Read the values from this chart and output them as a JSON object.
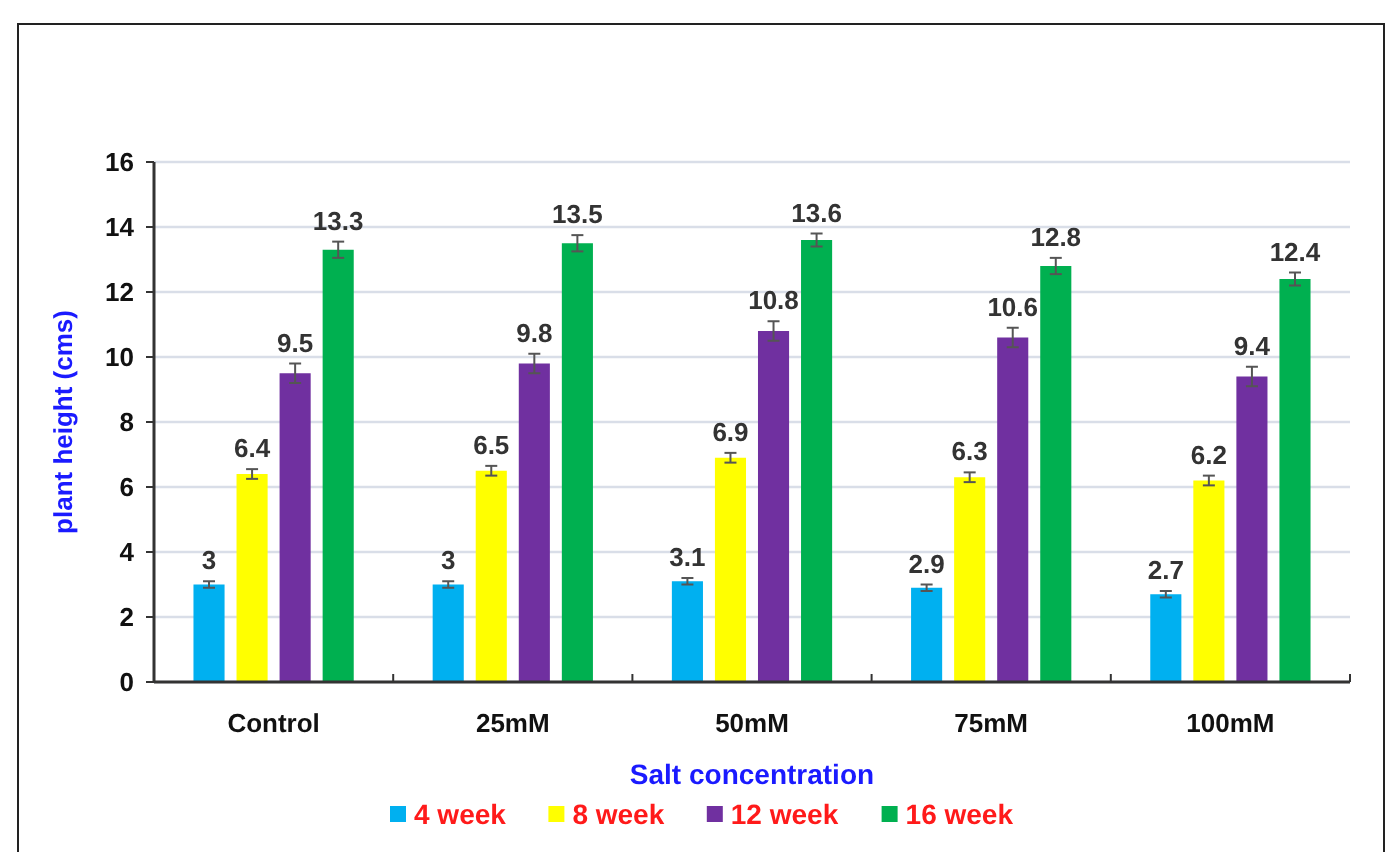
{
  "chart_data": {
    "type": "bar",
    "xlabel": "Salt concentration",
    "ylabel": "plant height (cms)",
    "categories": [
      "Control",
      "25mM",
      "50mM",
      "75mM",
      "100mM"
    ],
    "series": [
      {
        "name": "4 week",
        "color": "#00b0f0",
        "values": [
          3,
          3,
          3.1,
          2.9,
          2.7
        ],
        "errors": [
          0.1,
          0.1,
          0.1,
          0.1,
          0.1
        ]
      },
      {
        "name": "8 week",
        "color": "#ffff00",
        "values": [
          6.4,
          6.5,
          6.9,
          6.3,
          6.2
        ],
        "errors": [
          0.15,
          0.15,
          0.15,
          0.15,
          0.15
        ]
      },
      {
        "name": "12 week",
        "color": "#7030a0",
        "values": [
          9.5,
          9.8,
          10.8,
          10.6,
          9.4
        ],
        "errors": [
          0.3,
          0.3,
          0.3,
          0.3,
          0.3
        ]
      },
      {
        "name": "16 week",
        "color": "#00b050",
        "values": [
          13.3,
          13.5,
          13.6,
          12.8,
          12.4
        ],
        "errors": [
          0.25,
          0.25,
          0.2,
          0.25,
          0.2
        ]
      }
    ],
    "ylim": [
      0,
      16
    ],
    "yticks": [
      0,
      2,
      4,
      6,
      8,
      10,
      12,
      14,
      16
    ],
    "grid": "y",
    "data_labels": true,
    "legend": "bottom"
  }
}
